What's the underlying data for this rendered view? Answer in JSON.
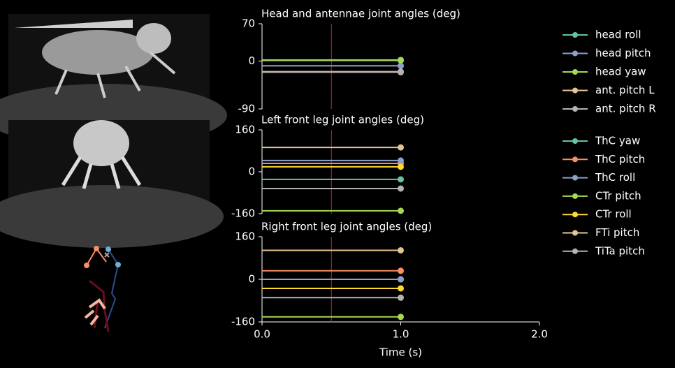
{
  "chart_data": [
    {
      "type": "line",
      "title": "Head and antennae joint angles (deg)",
      "x": [
        0,
        1
      ],
      "xlim": [
        0,
        2
      ],
      "ylim": [
        -90,
        70
      ],
      "yticks": [
        -90,
        0,
        70
      ],
      "cursor": 0.5,
      "legend": true,
      "series": [
        {
          "name": "head roll",
          "color": "#66c2a5",
          "values": [
            1,
            1
          ]
        },
        {
          "name": "head pitch",
          "color": "#8da0cb",
          "values": [
            -9,
            -9
          ]
        },
        {
          "name": "head yaw",
          "color": "#a6d854",
          "values": [
            2,
            2
          ]
        },
        {
          "name": "ant. pitch L",
          "color": "#e5c494",
          "values": [
            -20,
            -20
          ]
        },
        {
          "name": "ant. pitch R",
          "color": "#b3b3b3",
          "values": [
            -21,
            -21
          ]
        }
      ]
    },
    {
      "type": "line",
      "title": "Left front leg joint angles (deg)",
      "x": [
        0,
        1
      ],
      "xlim": [
        0,
        2
      ],
      "ylim": [
        -160,
        160
      ],
      "yticks": [
        -160,
        0,
        160
      ],
      "cursor": 0.5,
      "legend": true,
      "series": [
        {
          "name": "ThC yaw",
          "color": "#66c2a5",
          "values": [
            -29,
            -29
          ]
        },
        {
          "name": "ThC pitch",
          "color": "#fc8d62",
          "values": [
            32,
            32
          ]
        },
        {
          "name": "ThC roll",
          "color": "#8da0cb",
          "values": [
            43,
            43
          ]
        },
        {
          "name": "CTr pitch",
          "color": "#a6d854",
          "values": [
            -149,
            -149
          ]
        },
        {
          "name": "CTr roll",
          "color": "#ffd92f",
          "values": [
            19,
            19
          ]
        },
        {
          "name": "FTi pitch",
          "color": "#e5c494",
          "values": [
            93,
            93
          ]
        },
        {
          "name": "TiTa pitch",
          "color": "#b3b3b3",
          "values": [
            -64,
            -64
          ]
        }
      ]
    },
    {
      "type": "line",
      "title": "Right front leg joint angles (deg)",
      "x": [
        0,
        1
      ],
      "xlim": [
        0,
        2
      ],
      "ylim": [
        -160,
        160
      ],
      "yticks": [
        -160,
        0,
        160
      ],
      "cursor": 0.5,
      "legend": false,
      "xlabel": "Time (s)",
      "xticks": [
        {
          "value": 0,
          "label": "0.0"
        },
        {
          "value": 1,
          "label": "1.0"
        },
        {
          "value": 2,
          "label": "2.0"
        }
      ],
      "series": [
        {
          "name": "ThC yaw",
          "color": "#66c2a5",
          "values": [
            0,
            0
          ]
        },
        {
          "name": "ThC pitch",
          "color": "#fc8d62",
          "values": [
            32,
            32
          ]
        },
        {
          "name": "ThC roll",
          "color": "#8da0cb",
          "values": [
            0,
            0
          ]
        },
        {
          "name": "CTr pitch",
          "color": "#a6d854",
          "values": [
            -141,
            -141
          ]
        },
        {
          "name": "CTr roll",
          "color": "#ffd92f",
          "values": [
            -34,
            -34
          ]
        },
        {
          "name": "FTi pitch",
          "color": "#e5c494",
          "values": [
            109,
            109
          ]
        },
        {
          "name": "TiTa pitch",
          "color": "#b3b3b3",
          "values": [
            -69,
            -69
          ]
        }
      ]
    }
  ]
}
